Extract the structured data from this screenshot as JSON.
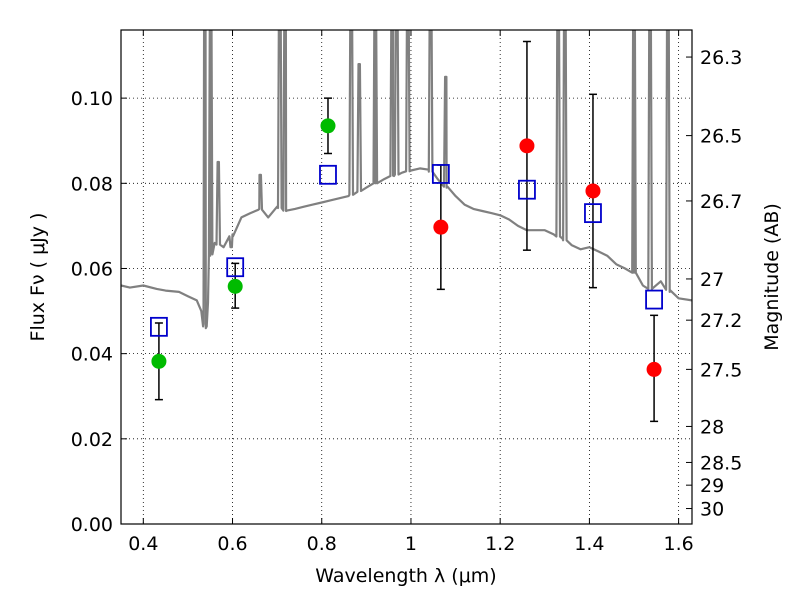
{
  "chart_data": {
    "type": "scatter",
    "title": "",
    "xlabel": "Wavelength  λ (μm)",
    "ylabel": "Flux  Fν  ( μJy )",
    "y2label": "Magnitude (AB)",
    "xlim": [
      0.35,
      1.63
    ],
    "ylim": [
      0.0,
      0.116
    ],
    "grid": true,
    "x_ticks": [
      0.4,
      0.6,
      0.8,
      1.0,
      1.2,
      1.4,
      1.6
    ],
    "x_tick_labels": [
      "0.4",
      "0.6",
      "0.8",
      "1",
      "1.2",
      "1.4",
      "1.6"
    ],
    "y_ticks": [
      0.0,
      0.02,
      0.04,
      0.06,
      0.08,
      0.1
    ],
    "y_tick_labels": [
      "0.00",
      "0.02",
      "0.04",
      "0.06",
      "0.08",
      "0.10"
    ],
    "y2_ticks": [
      26.3,
      26.5,
      26.7,
      27,
      27.2,
      27.5,
      28,
      28.5,
      29,
      30
    ],
    "y2_tick_labels": [
      "26.3",
      "26.5",
      "26.7",
      "27",
      "27.2",
      "27.5",
      "28",
      "28.5",
      "29",
      "30"
    ],
    "series": [
      {
        "marker": "circle",
        "color": "#00bb00",
        "points": [
          {
            "x": 0.435,
            "y": 0.0382,
            "yerr_low": 0.0292,
            "yerr_high": 0.0472
          },
          {
            "x": 0.606,
            "y": 0.0558,
            "yerr_low": 0.0507,
            "yerr_high": 0.0612
          },
          {
            "x": 0.814,
            "y": 0.0935,
            "yerr_low": 0.087,
            "yerr_high": 0.1
          }
        ]
      },
      {
        "marker": "circle",
        "color": "#ff0000",
        "points": [
          {
            "x": 1.067,
            "y": 0.0697,
            "yerr_low": 0.0551,
            "yerr_high": 0.0843
          },
          {
            "x": 1.26,
            "y": 0.0888,
            "yerr_low": 0.0643,
            "yerr_high": 0.1133
          },
          {
            "x": 1.408,
            "y": 0.0782,
            "yerr_low": 0.0555,
            "yerr_high": 0.1009
          },
          {
            "x": 1.545,
            "y": 0.0363,
            "yerr_low": 0.0241,
            "yerr_high": 0.049
          }
        ]
      },
      {
        "marker": "open-square",
        "color": "#0000cc",
        "points": [
          {
            "x": 0.435,
            "y": 0.0463
          },
          {
            "x": 0.606,
            "y": 0.0603
          },
          {
            "x": 0.814,
            "y": 0.082
          },
          {
            "x": 1.067,
            "y": 0.0822
          },
          {
            "x": 1.26,
            "y": 0.0785
          },
          {
            "x": 1.408,
            "y": 0.073
          },
          {
            "x": 1.545,
            "y": 0.0527
          }
        ]
      },
      {
        "type": "line",
        "color": "#808080",
        "x": [
          0.35,
          0.37,
          0.4,
          0.43,
          0.45,
          0.48,
          0.5,
          0.52,
          0.53,
          0.535,
          0.54,
          0.545,
          0.55,
          0.56,
          0.58,
          0.6,
          0.62,
          0.64,
          0.66,
          0.68,
          0.7,
          0.72,
          0.74,
          0.76,
          0.78,
          0.8,
          0.82,
          0.84,
          0.86,
          0.88,
          0.9,
          0.92,
          0.94,
          0.96,
          0.98,
          1.0,
          1.02,
          1.04,
          1.06,
          1.08,
          1.1,
          1.12,
          1.14,
          1.16,
          1.18,
          1.2,
          1.22,
          1.24,
          1.26,
          1.28,
          1.3,
          1.32,
          1.34,
          1.36,
          1.38,
          1.4,
          1.42,
          1.44,
          1.46,
          1.48,
          1.5,
          1.52,
          1.54,
          1.56,
          1.58,
          1.6,
          1.63
        ],
        "y": [
          0.056,
          0.0555,
          0.056,
          0.0552,
          0.0548,
          0.0545,
          0.0535,
          0.0525,
          0.05,
          0.047,
          0.046,
          0.052,
          0.063,
          0.066,
          0.065,
          0.068,
          0.072,
          0.073,
          0.074,
          0.072,
          0.0745,
          0.0735,
          0.074,
          0.0745,
          0.075,
          0.0755,
          0.076,
          0.0765,
          0.077,
          0.078,
          0.079,
          0.08,
          0.081,
          0.0818,
          0.0825,
          0.083,
          0.0835,
          0.0832,
          0.081,
          0.079,
          0.077,
          0.075,
          0.074,
          0.0735,
          0.073,
          0.0725,
          0.0715,
          0.07,
          0.069,
          0.069,
          0.069,
          0.068,
          0.067,
          0.0655,
          0.0645,
          0.065,
          0.064,
          0.063,
          0.061,
          0.06,
          0.059,
          0.056,
          0.055,
          0.057,
          0.0545,
          0.053,
          0.0525
        ],
        "emission_lines": [
          {
            "x": 0.538,
            "peak": 0.13
          },
          {
            "x": 0.551,
            "peak": 0.13
          },
          {
            "x": 0.568,
            "peak": 0.085
          },
          {
            "x": 0.597,
            "peak": 0.065
          },
          {
            "x": 0.662,
            "peak": 0.082
          },
          {
            "x": 0.706,
            "peak": 0.13
          },
          {
            "x": 0.718,
            "peak": 0.13
          },
          {
            "x": 0.866,
            "peak": 0.13
          },
          {
            "x": 0.884,
            "peak": 0.108
          },
          {
            "x": 0.92,
            "peak": 0.13
          },
          {
            "x": 0.958,
            "peak": 0.13
          },
          {
            "x": 0.968,
            "peak": 0.13
          },
          {
            "x": 0.993,
            "peak": 0.13
          },
          {
            "x": 1.044,
            "peak": 0.13
          },
          {
            "x": 1.078,
            "peak": 0.105
          },
          {
            "x": 1.33,
            "peak": 0.13
          },
          {
            "x": 1.345,
            "peak": 0.13
          },
          {
            "x": 1.5,
            "peak": 0.13
          },
          {
            "x": 1.536,
            "peak": 0.13
          },
          {
            "x": 1.576,
            "peak": 0.13
          }
        ]
      }
    ]
  }
}
